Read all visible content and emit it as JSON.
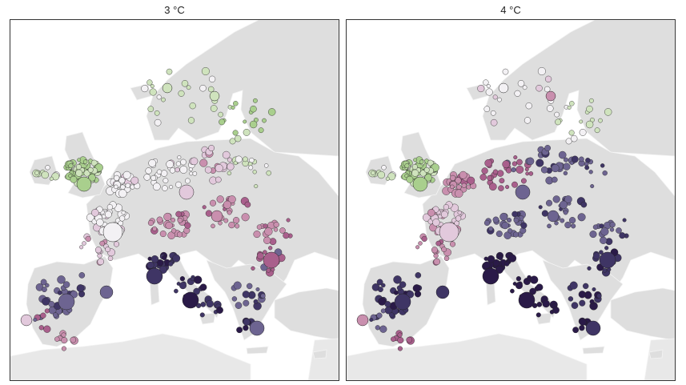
{
  "panels": [
    {
      "title": "3 °C",
      "scenario": "3C"
    },
    {
      "title": "4 °C",
      "scenario": "4C"
    }
  ],
  "colors": {
    "sea": "#ffffff",
    "land_europe": "#dedede",
    "land_other": "#e8e8e8",
    "marker_outline": "#222222",
    "palette": [
      "#a9cf8d",
      "#cfe3bd",
      "#f3f1f4",
      "#e2c9dc",
      "#c98fae",
      "#a95f8c",
      "#6d6491",
      "#3f3565",
      "#2a1a48"
    ]
  }
}
